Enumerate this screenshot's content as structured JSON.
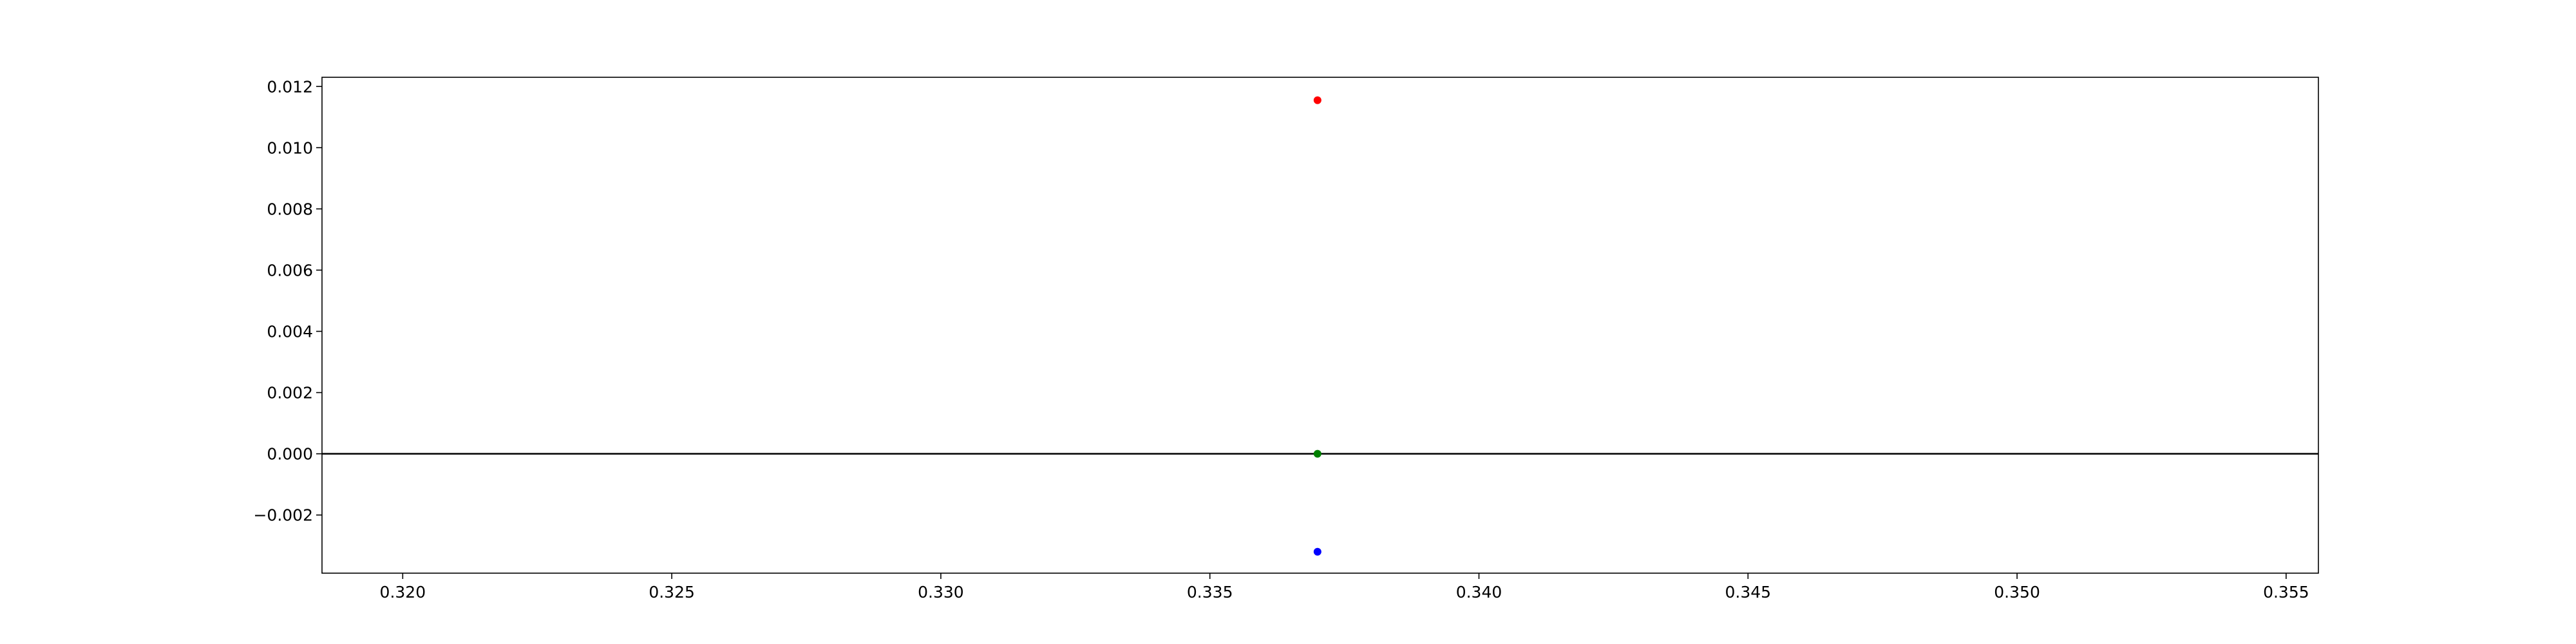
{
  "chart_data": {
    "type": "scatter",
    "title": "",
    "xlabel": "",
    "ylabel": "",
    "xlim": [
      0.3185,
      0.3556
    ],
    "ylim": [
      -0.0039,
      0.0123
    ],
    "x_ticks": [
      0.32,
      0.325,
      0.33,
      0.335,
      0.34,
      0.345,
      0.35,
      0.355
    ],
    "x_tick_labels": [
      "0.320",
      "0.325",
      "0.330",
      "0.335",
      "0.340",
      "0.345",
      "0.350",
      "0.355"
    ],
    "y_ticks": [
      -0.002,
      0.0,
      0.002,
      0.004,
      0.006,
      0.008,
      0.01,
      0.012
    ],
    "y_tick_labels": [
      "−0.002",
      "0.000",
      "0.002",
      "0.004",
      "0.006",
      "0.008",
      "0.010",
      "0.012"
    ],
    "grid": false,
    "horizontal_line": {
      "y": 0.0,
      "color": "#000000"
    },
    "points": [
      {
        "x": 0.337,
        "y": 0.01155,
        "color": "#ff0000"
      },
      {
        "x": 0.337,
        "y": 0.0,
        "color": "#008000"
      },
      {
        "x": 0.337,
        "y": -0.0032,
        "color": "#0000ff"
      }
    ]
  }
}
